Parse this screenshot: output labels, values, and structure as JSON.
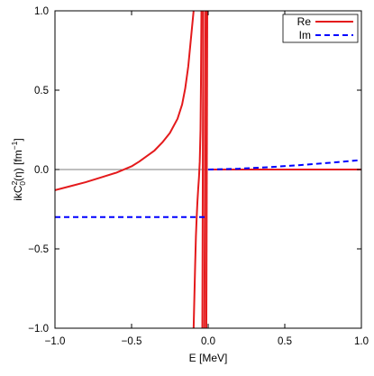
{
  "chart_data": {
    "type": "line",
    "title": "",
    "xlabel": "E [MeV]",
    "ylabel": {
      "prefix": "ikC",
      "sup": "2",
      "sub": "0",
      "mid": "(η) [fm",
      "exp": "−1",
      "suffix": "]"
    },
    "xlim": [
      -1.0,
      1.0
    ],
    "ylim": [
      -1.0,
      1.0
    ],
    "xticks": [
      -1.0,
      -0.5,
      0.0,
      0.5,
      1.0
    ],
    "xtick_labels": [
      "−1.0",
      "−0.5",
      "0.0",
      "0.5",
      "1.0"
    ],
    "yticks": [
      -1.0,
      -0.5,
      0.0,
      0.5,
      1.0
    ],
    "ytick_labels": [
      "−1.0",
      "−0.5",
      "0.0",
      "0.5",
      "1.0"
    ],
    "grid": false,
    "legend_position": "top-right",
    "zero_line": true,
    "series": [
      {
        "name": "Re",
        "color": "#e41a1c",
        "dash": "solid",
        "segments": [
          [
            [
              -1.0,
              -0.13
            ],
            [
              -0.9,
              -0.105
            ],
            [
              -0.8,
              -0.08
            ],
            [
              -0.7,
              -0.05
            ],
            [
              -0.6,
              -0.02
            ],
            [
              -0.5,
              0.02
            ],
            [
              -0.45,
              0.05
            ],
            [
              -0.4,
              0.085
            ],
            [
              -0.35,
              0.12
            ],
            [
              -0.3,
              0.17
            ],
            [
              -0.25,
              0.23
            ],
            [
              -0.2,
              0.32
            ],
            [
              -0.17,
              0.41
            ],
            [
              -0.15,
              0.51
            ],
            [
              -0.13,
              0.65
            ],
            [
              -0.11,
              0.85
            ],
            [
              -0.095,
              1.0
            ]
          ],
          [
            [
              -0.095,
              -1.0
            ],
            [
              -0.09,
              -0.8
            ],
            [
              -0.085,
              -0.6
            ],
            [
              -0.08,
              -0.42
            ],
            [
              -0.075,
              -0.3
            ],
            [
              -0.07,
              -0.2
            ],
            [
              -0.065,
              -0.12
            ],
            [
              -0.06,
              -0.05
            ],
            [
              -0.055,
              0.05
            ],
            [
              -0.05,
              0.25
            ],
            [
              -0.047,
              0.55
            ],
            [
              -0.044,
              1.0
            ]
          ],
          [
            [
              -0.038,
              -1.0
            ],
            [
              -0.035,
              0.0
            ],
            [
              -0.032,
              1.0
            ]
          ],
          [
            [
              -0.025,
              -1.0
            ],
            [
              -0.022,
              -0.3
            ],
            [
              -0.02,
              0.3
            ],
            [
              -0.017,
              1.0
            ]
          ],
          [
            [
              -0.012,
              -1.0
            ],
            [
              -0.009,
              0.0
            ],
            [
              -0.006,
              1.0
            ]
          ],
          [
            [
              0.0,
              0.0
            ],
            [
              1.0,
              0.0
            ]
          ]
        ]
      },
      {
        "name": "Im",
        "color": "#0000ff",
        "dash": "dashed",
        "segments": [
          [
            [
              -1.0,
              -0.3
            ],
            [
              -0.02,
              -0.3
            ]
          ],
          [
            [
              0.0,
              0.0
            ],
            [
              0.2,
              0.005
            ],
            [
              0.4,
              0.015
            ],
            [
              0.6,
              0.028
            ],
            [
              0.8,
              0.043
            ],
            [
              1.0,
              0.06
            ]
          ]
        ]
      }
    ]
  }
}
